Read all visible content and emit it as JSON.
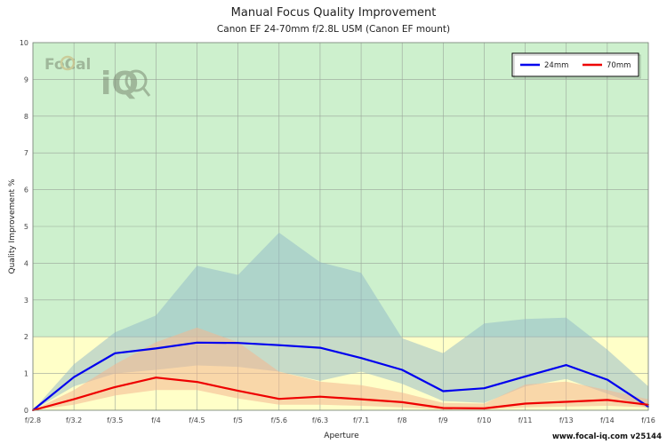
{
  "title": "Manual Focus Quality Improvement",
  "subtitle": "Canon EF 24-70mm f/2.8L USM (Canon EF mount)",
  "footer": "www.focal-iq.com  v25144",
  "logo": {
    "text_top": "FoCal",
    "text_bottom": "iQ"
  },
  "colors": {
    "zone_high": "#cdf0cd",
    "zone_low": "#ffffc8",
    "band_24mm": "#8fb8c8",
    "band_70mm": "#f4b690",
    "line_24mm": "#0000ee",
    "line_70mm": "#ee0000"
  },
  "chart_data": {
    "type": "line",
    "title": "Manual Focus Quality Improvement",
    "subtitle": "Canon EF 24-70mm f/2.8L USM (Canon EF mount)",
    "xlabel": "Aperture",
    "ylabel": "Quality Improvement %",
    "categories": [
      "f/2.8",
      "f/3.2",
      "f/3.5",
      "f/4",
      "f/4.5",
      "f/5",
      "f/5.6",
      "f/6.3",
      "f/7.1",
      "f/8",
      "f/9",
      "f/10",
      "f/11",
      "f/13",
      "f/14",
      "f/16"
    ],
    "ylim": [
      0,
      10
    ],
    "yticks": [
      0,
      1,
      2,
      3,
      4,
      5,
      6,
      7,
      8,
      9,
      10
    ],
    "zones": [
      {
        "from": 0,
        "to": 2,
        "color": "#ffffc8"
      },
      {
        "from": 2,
        "to": 10,
        "color": "#cdf0cd"
      }
    ],
    "grid": true,
    "legend_position": "top-right",
    "series": [
      {
        "name": "24mm",
        "color": "#0000ee",
        "values": [
          0.0,
          0.9,
          1.55,
          1.68,
          1.84,
          1.83,
          1.77,
          1.7,
          1.42,
          1.1,
          0.52,
          0.6,
          0.92,
          1.23,
          0.83,
          0.1
        ],
        "band_upper": [
          0.0,
          1.25,
          2.12,
          2.58,
          3.93,
          3.68,
          4.83,
          4.03,
          3.74,
          1.96,
          1.55,
          2.36,
          2.48,
          2.52,
          1.65,
          0.65
        ],
        "band_lower": [
          0.0,
          0.65,
          1.0,
          1.1,
          1.22,
          1.18,
          1.05,
          0.8,
          1.05,
          0.72,
          0.25,
          0.2,
          0.65,
          0.85,
          0.45,
          0.05
        ]
      },
      {
        "name": "70mm",
        "color": "#ee0000",
        "values": [
          0.0,
          0.3,
          0.63,
          0.89,
          0.77,
          0.53,
          0.31,
          0.37,
          0.3,
          0.22,
          0.06,
          0.05,
          0.18,
          0.23,
          0.28,
          0.15
        ],
        "band_upper": [
          0.0,
          0.55,
          1.25,
          1.85,
          2.25,
          1.85,
          1.05,
          0.78,
          0.68,
          0.48,
          0.2,
          0.18,
          0.7,
          0.78,
          0.55,
          0.3
        ],
        "band_lower": [
          0.0,
          0.15,
          0.4,
          0.55,
          0.55,
          0.32,
          0.15,
          0.15,
          0.12,
          0.08,
          0.02,
          0.02,
          0.08,
          0.1,
          0.12,
          0.08
        ]
      }
    ]
  }
}
